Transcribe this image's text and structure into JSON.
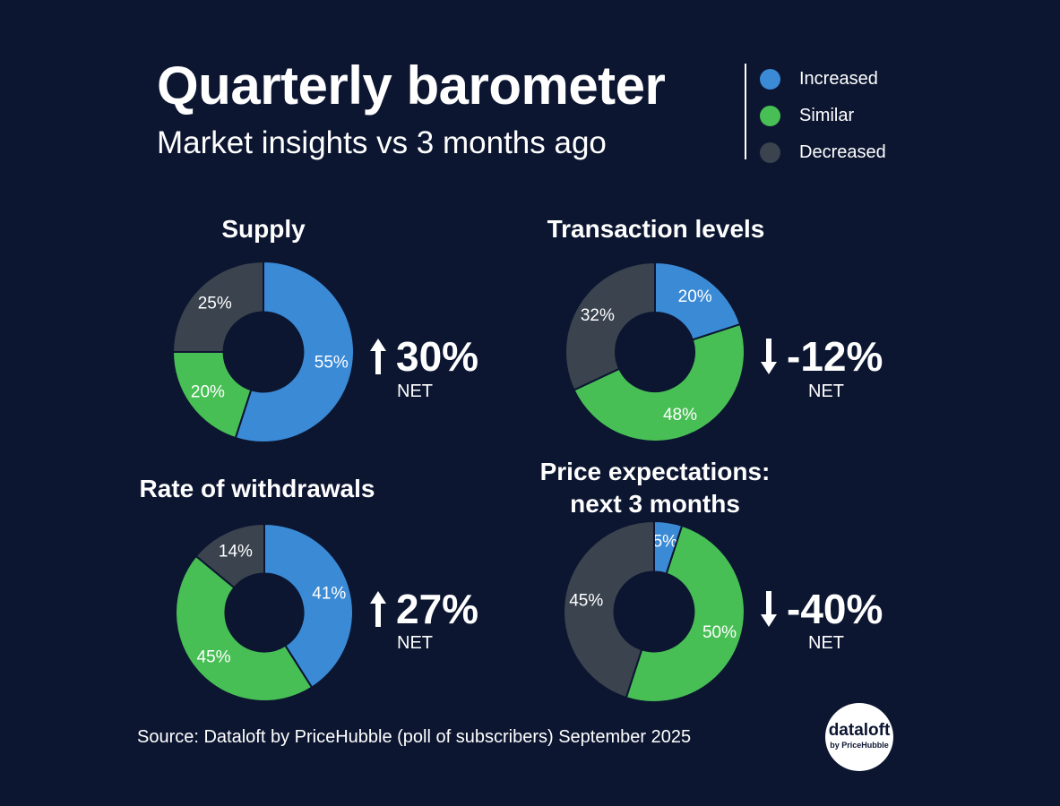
{
  "header": {
    "title": "Quarterly barometer",
    "subtitle": "Market insights vs 3 months ago"
  },
  "legend": [
    {
      "label": "Increased",
      "color": "#3b8ad6"
    },
    {
      "label": "Similar",
      "color": "#48bf55"
    },
    {
      "label": "Decreased",
      "color": "#3a434e"
    }
  ],
  "chart_data": [
    {
      "type": "pie",
      "title": "Supply",
      "categories": [
        "Increased",
        "Similar",
        "Decreased"
      ],
      "values": [
        55,
        20,
        25
      ],
      "value_labels": [
        "55%",
        "20%",
        "25%"
      ],
      "net": {
        "direction": "up",
        "value": "30%",
        "label": "NET"
      }
    },
    {
      "type": "pie",
      "title": "Transaction levels",
      "categories": [
        "Increased",
        "Similar",
        "Decreased"
      ],
      "values": [
        20,
        48,
        32
      ],
      "value_labels": [
        "20%",
        "48%",
        "32%"
      ],
      "net": {
        "direction": "down",
        "value": "-12%",
        "label": "NET"
      }
    },
    {
      "type": "pie",
      "title": "Rate of withdrawals",
      "categories": [
        "Increased",
        "Similar",
        "Decreased"
      ],
      "values": [
        41,
        45,
        14
      ],
      "value_labels": [
        "41%",
        "45%",
        "14%"
      ],
      "net": {
        "direction": "up",
        "value": "27%",
        "label": "NET"
      }
    },
    {
      "type": "pie",
      "title": "Price expectations:\nnext 3 months",
      "title_lines": [
        "Price expectations:",
        "next 3 months"
      ],
      "categories": [
        "Increased",
        "Similar",
        "Decreased"
      ],
      "values": [
        5,
        50,
        45
      ],
      "value_labels": [
        "5%",
        "50%",
        "45%"
      ],
      "net": {
        "direction": "down",
        "value": "-40%",
        "label": "NET"
      }
    }
  ],
  "footer": {
    "source": "Source: Dataloft by PriceHubble (poll of subscribers) September 2025",
    "logo_main": "dataloft",
    "logo_sub": "by PriceHubble"
  }
}
